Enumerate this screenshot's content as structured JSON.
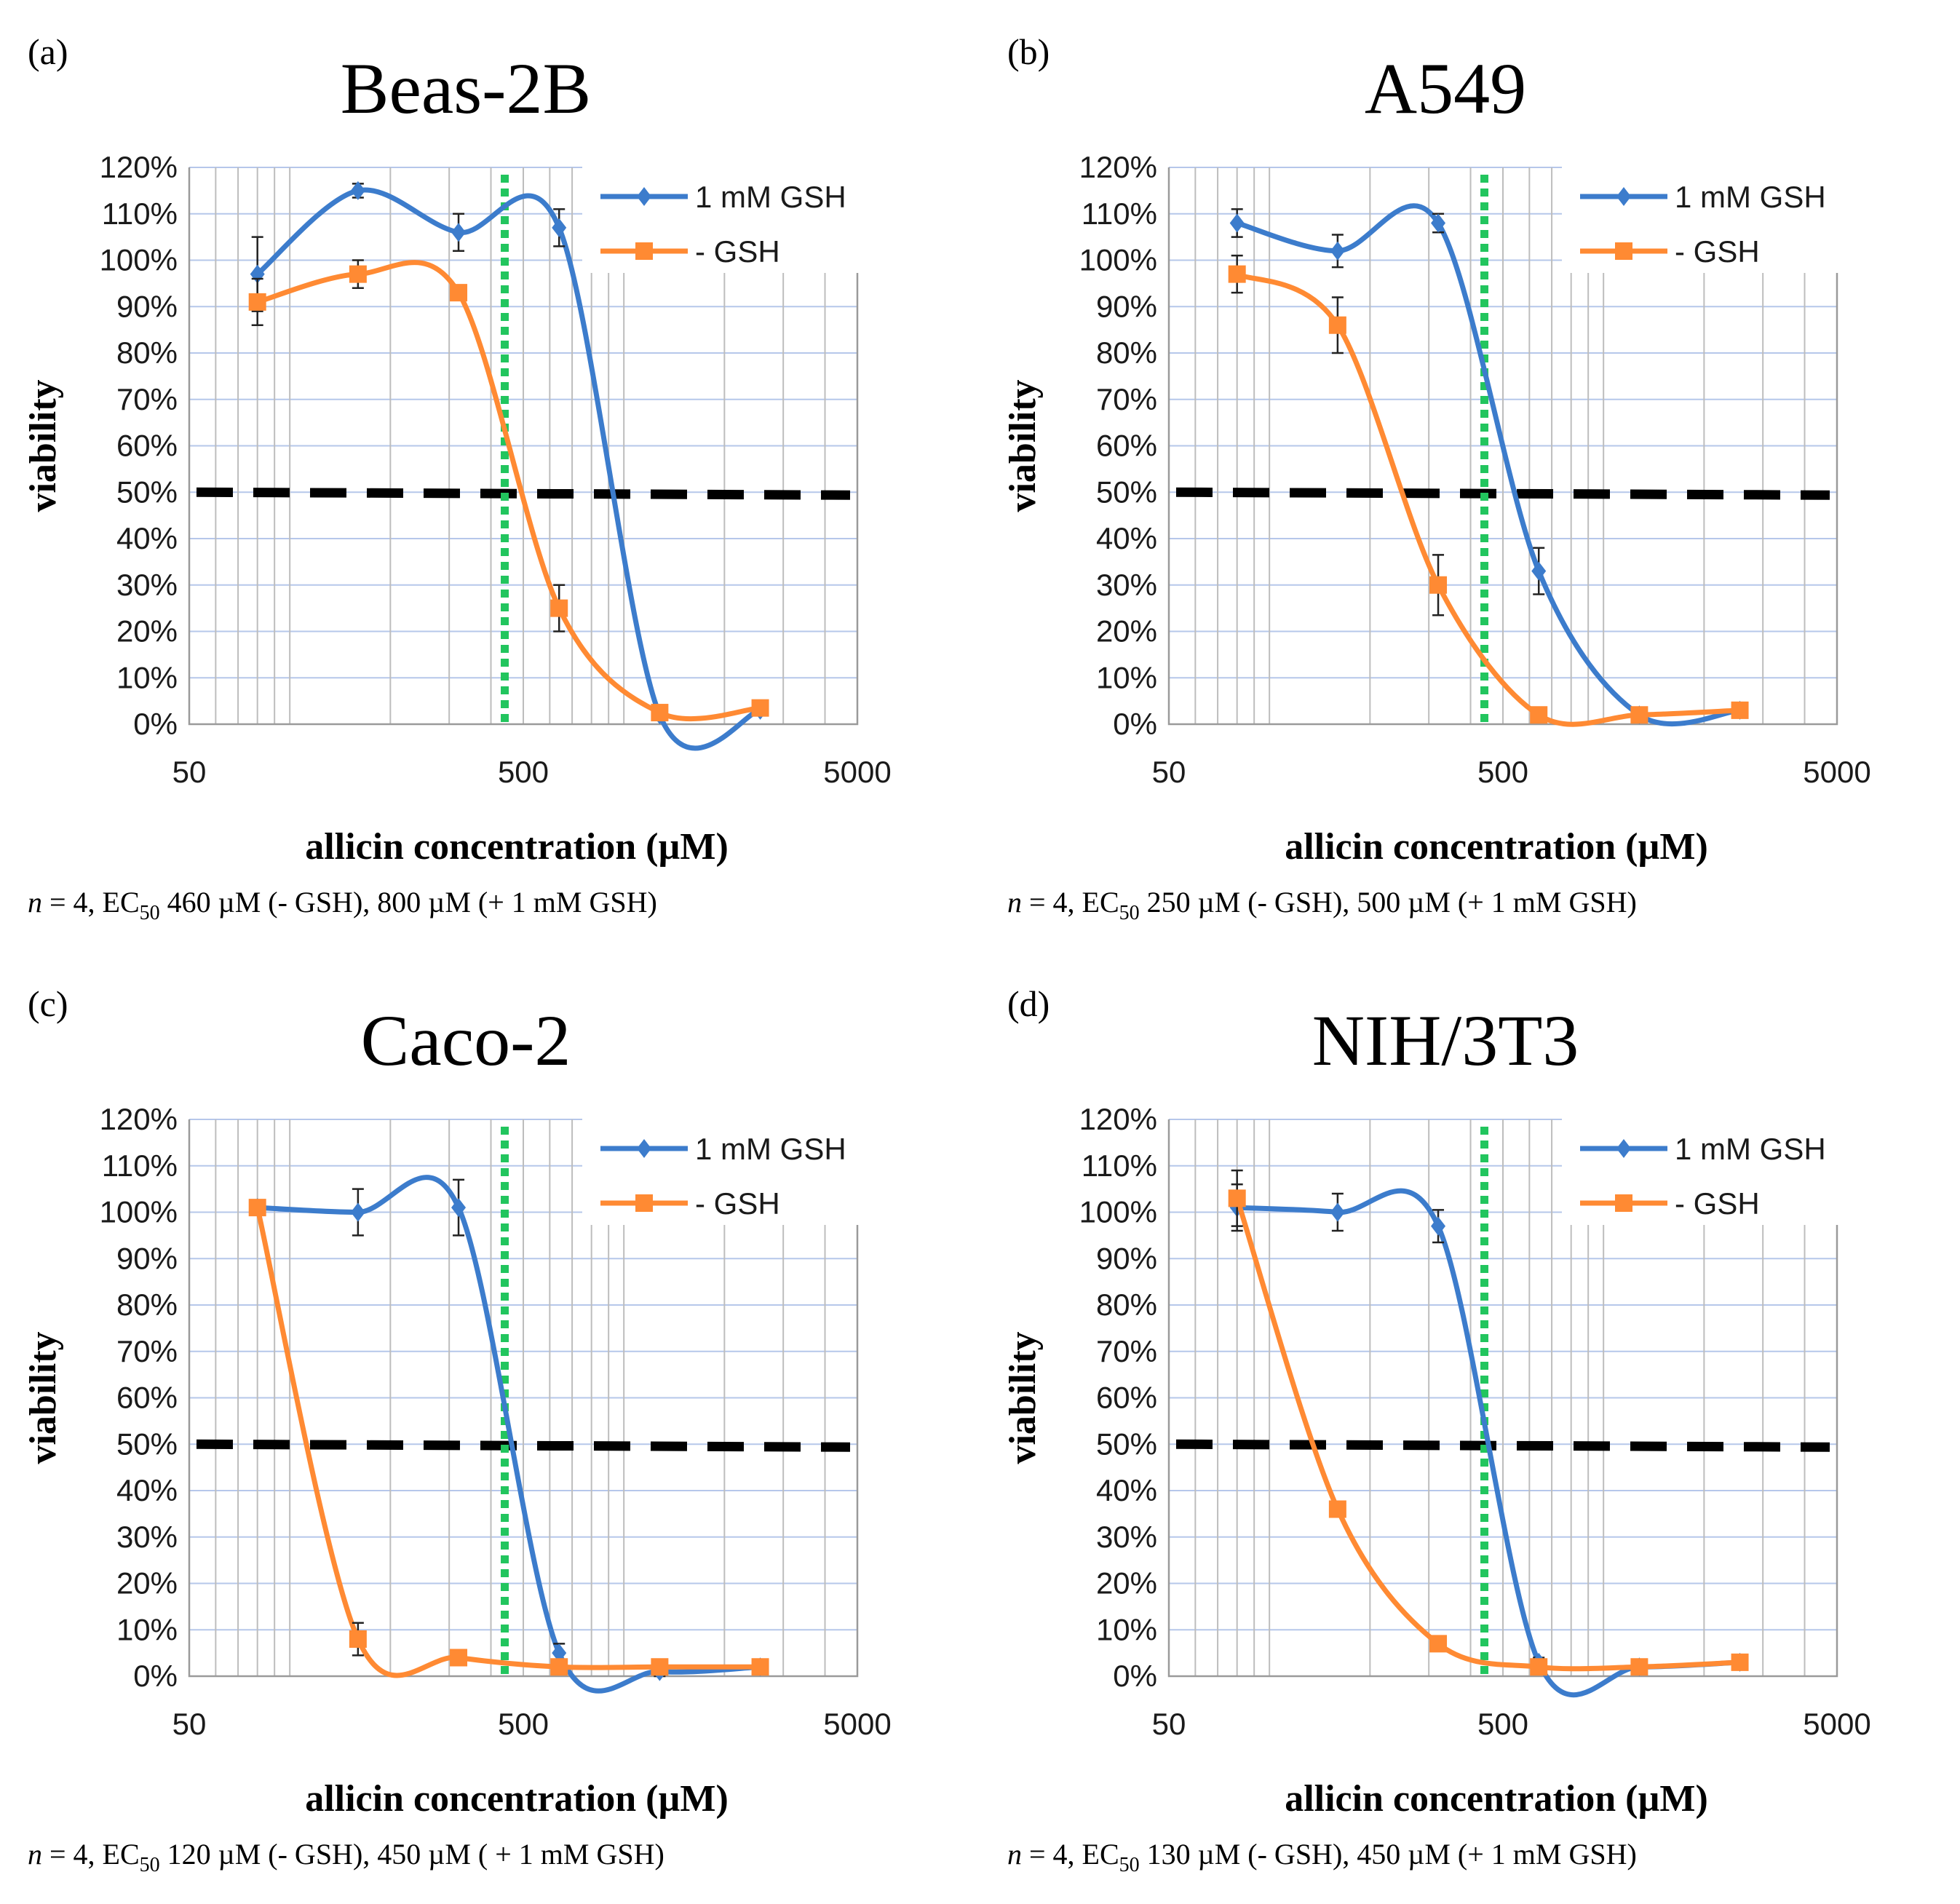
{
  "styles": {
    "gsh_color": "#3c7ccc",
    "nogsh_color": "#ff8a33",
    "ec50_line_color": "#22c55e",
    "half_line_color": "#000000",
    "grid_color": "#b6c7ea"
  },
  "chart_data": [
    {
      "type": "line",
      "panel_label": "(a)",
      "title": "Beas-2B",
      "xlabel": "allicin concentration (µM)",
      "ylabel": "viability",
      "xscale": "log",
      "xlim": [
        50,
        5000
      ],
      "ylim": [
        0,
        1.2
      ],
      "x_ticks": [
        "50",
        "500",
        "5000"
      ],
      "y_ticks": [
        "0%",
        "10%",
        "20%",
        "30%",
        "40%",
        "50%",
        "60%",
        "70%",
        "80%",
        "90%",
        "100%",
        "110%",
        "120%"
      ],
      "ec50_marker_x": 440,
      "threshold_y": 0.5,
      "note_prefix": "n",
      "note_mid": " = 4, EC",
      "note_sub": "50",
      "note_rest": " 460 µM (- GSH), 800 µM (+ 1 mM GSH)",
      "series": [
        {
          "name": "1 mM GSH",
          "x": [
            80,
            160,
            320,
            640,
            1280,
            2560
          ],
          "values": [
            0.97,
            1.15,
            1.06,
            1.07,
            0.02,
            0.03
          ],
          "errors": [
            0.08,
            0.015,
            0.04,
            0.04,
            0.01,
            0.01
          ]
        },
        {
          "name": "- GSH",
          "x": [
            80,
            160,
            320,
            640,
            1280,
            2560
          ],
          "values": [
            0.91,
            0.97,
            0.93,
            0.25,
            0.025,
            0.035
          ],
          "errors": [
            0.05,
            0.03,
            0.01,
            0.05,
            0.01,
            0.01
          ]
        }
      ]
    },
    {
      "type": "line",
      "panel_label": "(b)",
      "title": "A549",
      "xlabel": "allicin concentration (µM)",
      "ylabel": "viability",
      "xscale": "log",
      "xlim": [
        50,
        5000
      ],
      "ylim": [
        0,
        1.2
      ],
      "x_ticks": [
        "50",
        "500",
        "5000"
      ],
      "y_ticks": [
        "0%",
        "10%",
        "20%",
        "30%",
        "40%",
        "50%",
        "60%",
        "70%",
        "80%",
        "90%",
        "100%",
        "110%",
        "120%"
      ],
      "ec50_marker_x": 440,
      "threshold_y": 0.5,
      "note_prefix": "n",
      "note_mid": " = 4, EC",
      "note_sub": "50",
      "note_rest": " 250 µM (- GSH), 500 µM (+ 1 mM GSH)",
      "series": [
        {
          "name": "1 mM GSH",
          "x": [
            80,
            160,
            320,
            640,
            1280,
            2560
          ],
          "values": [
            1.08,
            1.02,
            1.08,
            0.33,
            0.02,
            0.03
          ],
          "errors": [
            0.03,
            0.035,
            0.02,
            0.05,
            0.01,
            0.01
          ]
        },
        {
          "name": "- GSH",
          "x": [
            80,
            160,
            320,
            640,
            1280,
            2560
          ],
          "values": [
            0.97,
            0.86,
            0.3,
            0.02,
            0.02,
            0.03
          ],
          "errors": [
            0.04,
            0.06,
            0.065,
            0.01,
            0.01,
            0.01
          ]
        }
      ]
    },
    {
      "type": "line",
      "panel_label": "(c)",
      "title": "Caco-2",
      "xlabel": "allicin concentration (µM)",
      "ylabel": "viability",
      "xscale": "log",
      "xlim": [
        50,
        5000
      ],
      "ylim": [
        0,
        1.2
      ],
      "x_ticks": [
        "50",
        "500",
        "5000"
      ],
      "y_ticks": [
        "0%",
        "10%",
        "20%",
        "30%",
        "40%",
        "50%",
        "60%",
        "70%",
        "80%",
        "90%",
        "100%",
        "110%",
        "120%"
      ],
      "ec50_marker_x": 440,
      "threshold_y": 0.5,
      "note_prefix": "n",
      "note_mid": " = 4, EC",
      "note_sub": "50",
      "note_rest": " 120 µM (- GSH), 450 µM ( + 1 mM GSH)",
      "series": [
        {
          "name": "1 mM GSH",
          "x": [
            80,
            160,
            320,
            640,
            1280,
            2560
          ],
          "values": [
            1.01,
            1.0,
            1.01,
            0.05,
            0.01,
            0.02
          ],
          "errors": [
            0.015,
            0.05,
            0.06,
            0.02,
            0.01,
            0.01
          ]
        },
        {
          "name": "- GSH",
          "x": [
            80,
            160,
            320,
            640,
            1280,
            2560
          ],
          "values": [
            1.01,
            0.08,
            0.04,
            0.02,
            0.02,
            0.02
          ],
          "errors": [
            0.015,
            0.035,
            0.01,
            0.01,
            0.01,
            0.01
          ]
        }
      ]
    },
    {
      "type": "line",
      "panel_label": "(d)",
      "title": "NIH/3T3",
      "xlabel": "allicin concentration (µM)",
      "ylabel": "viability",
      "xscale": "log",
      "xlim": [
        50,
        5000
      ],
      "ylim": [
        0,
        1.2
      ],
      "x_ticks": [
        "50",
        "500",
        "5000"
      ],
      "y_ticks": [
        "0%",
        "10%",
        "20%",
        "30%",
        "40%",
        "50%",
        "60%",
        "70%",
        "80%",
        "90%",
        "100%",
        "110%",
        "120%"
      ],
      "ec50_marker_x": 440,
      "threshold_y": 0.5,
      "note_prefix": "n",
      "note_mid": " = 4, EC",
      "note_sub": "50",
      "note_rest": " 130 µM (- GSH), 450 µM (+ 1 mM GSH)",
      "series": [
        {
          "name": "1 mM GSH",
          "x": [
            80,
            160,
            320,
            640,
            1280,
            2560
          ],
          "values": [
            1.01,
            1.0,
            0.97,
            0.03,
            0.02,
            0.03
          ],
          "errors": [
            0.05,
            0.04,
            0.035,
            0.01,
            0.01,
            0.01
          ]
        },
        {
          "name": "- GSH",
          "x": [
            80,
            160,
            320,
            640,
            1280,
            2560
          ],
          "values": [
            1.03,
            0.36,
            0.07,
            0.02,
            0.02,
            0.03
          ],
          "errors": [
            0.06,
            0.01,
            0.01,
            0.01,
            0.01,
            0.01
          ]
        }
      ]
    }
  ]
}
